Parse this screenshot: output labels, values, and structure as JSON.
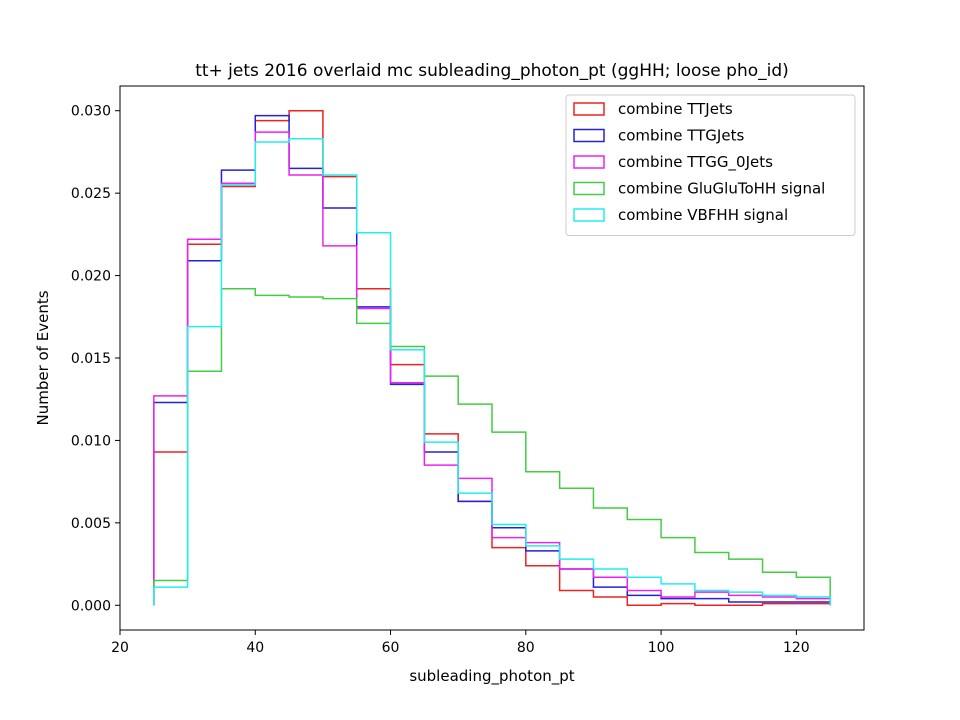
{
  "chart_data": {
    "type": "histogram-step",
    "title": "tt+ jets 2016 overlaid mc subleading_photon_pt (ggHH; loose pho_id)",
    "xlabel": "subleading_photon_pt",
    "ylabel": "Number of Events",
    "xlim": [
      20,
      130
    ],
    "ylim": [
      -0.0015,
      0.0315
    ],
    "xticks": [
      20,
      40,
      60,
      80,
      100,
      120
    ],
    "yticks": [
      0.0,
      0.005,
      0.01,
      0.015,
      0.02,
      0.025,
      0.03
    ],
    "ytick_labels": [
      "0.000",
      "0.005",
      "0.010",
      "0.015",
      "0.020",
      "0.025",
      "0.030"
    ],
    "grid": false,
    "legend_position": "top-right",
    "bin_edges": [
      25,
      30,
      35,
      40,
      45,
      50,
      55,
      60,
      65,
      70,
      75,
      80,
      85,
      90,
      95,
      100,
      105,
      110,
      115,
      120,
      125
    ],
    "series": [
      {
        "name": "combine TTJets",
        "color": "#ee2222",
        "values": [
          0.0093,
          0.0219,
          0.0254,
          0.0294,
          0.03,
          0.026,
          0.0192,
          0.0146,
          0.0104,
          0.0063,
          0.0035,
          0.0024,
          0.0009,
          0.0005,
          0.0,
          0.0001,
          0.0,
          0.0,
          0.0001,
          0.0001
        ]
      },
      {
        "name": "combine TTGJets",
        "color": "#2222dd",
        "values": [
          0.0123,
          0.0209,
          0.0264,
          0.0297,
          0.0265,
          0.0241,
          0.0181,
          0.0134,
          0.0093,
          0.0063,
          0.0047,
          0.0033,
          0.0022,
          0.0011,
          0.0006,
          0.0004,
          0.0004,
          0.0002,
          0.0002,
          0.0002
        ]
      },
      {
        "name": "combine TTGG_0Jets",
        "color": "#ee22ee",
        "values": [
          0.0127,
          0.0222,
          0.0256,
          0.0287,
          0.0261,
          0.0218,
          0.018,
          0.0135,
          0.0085,
          0.0077,
          0.0041,
          0.0038,
          0.0022,
          0.0017,
          0.0009,
          0.0005,
          0.0008,
          0.0006,
          0.0005,
          0.0004
        ]
      },
      {
        "name": "combine GluGluToHH signal",
        "color": "#44cc44",
        "values": [
          0.0015,
          0.0142,
          0.0192,
          0.0188,
          0.0187,
          0.0186,
          0.0171,
          0.0157,
          0.0139,
          0.0122,
          0.0105,
          0.0081,
          0.0071,
          0.0059,
          0.0052,
          0.0041,
          0.0032,
          0.0028,
          0.002,
          0.0017
        ]
      },
      {
        "name": "combine VBFHH signal",
        "color": "#22eeee",
        "values": [
          0.0011,
          0.0169,
          0.0255,
          0.0281,
          0.0283,
          0.0261,
          0.0226,
          0.0155,
          0.0099,
          0.0068,
          0.0049,
          0.0036,
          0.0028,
          0.0022,
          0.0017,
          0.0013,
          0.0009,
          0.0008,
          0.0006,
          0.0005
        ]
      }
    ]
  }
}
